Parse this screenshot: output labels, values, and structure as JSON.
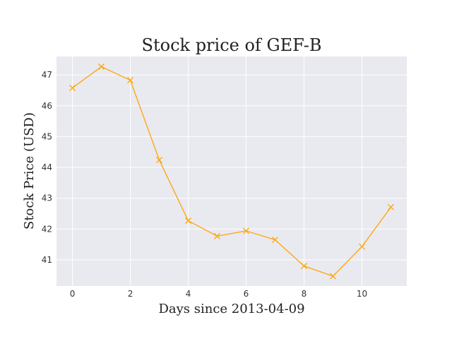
{
  "chart_data": {
    "type": "line",
    "title": "Stock price of GEF-B",
    "xlabel": "Days since 2013-04-09",
    "ylabel": "Stock Price (USD)",
    "x": [
      0,
      1,
      2,
      3,
      4,
      5,
      6,
      7,
      8,
      9,
      10,
      11
    ],
    "series": [
      {
        "values": [
          46.58,
          47.27,
          46.83,
          44.24,
          42.27,
          41.77,
          41.94,
          41.65,
          40.8,
          40.47,
          41.43,
          42.71
        ],
        "color": "#FFA500",
        "marker": "x"
      }
    ],
    "xlim": [
      -0.55,
      11.55
    ],
    "ylim": [
      40.15,
      47.6
    ],
    "xticks": [
      0,
      2,
      4,
      6,
      8,
      10
    ],
    "yticks": [
      41,
      42,
      43,
      44,
      45,
      46,
      47
    ],
    "grid": true,
    "background": "#E9E9F0",
    "grid_color": "#FFFFFF"
  }
}
